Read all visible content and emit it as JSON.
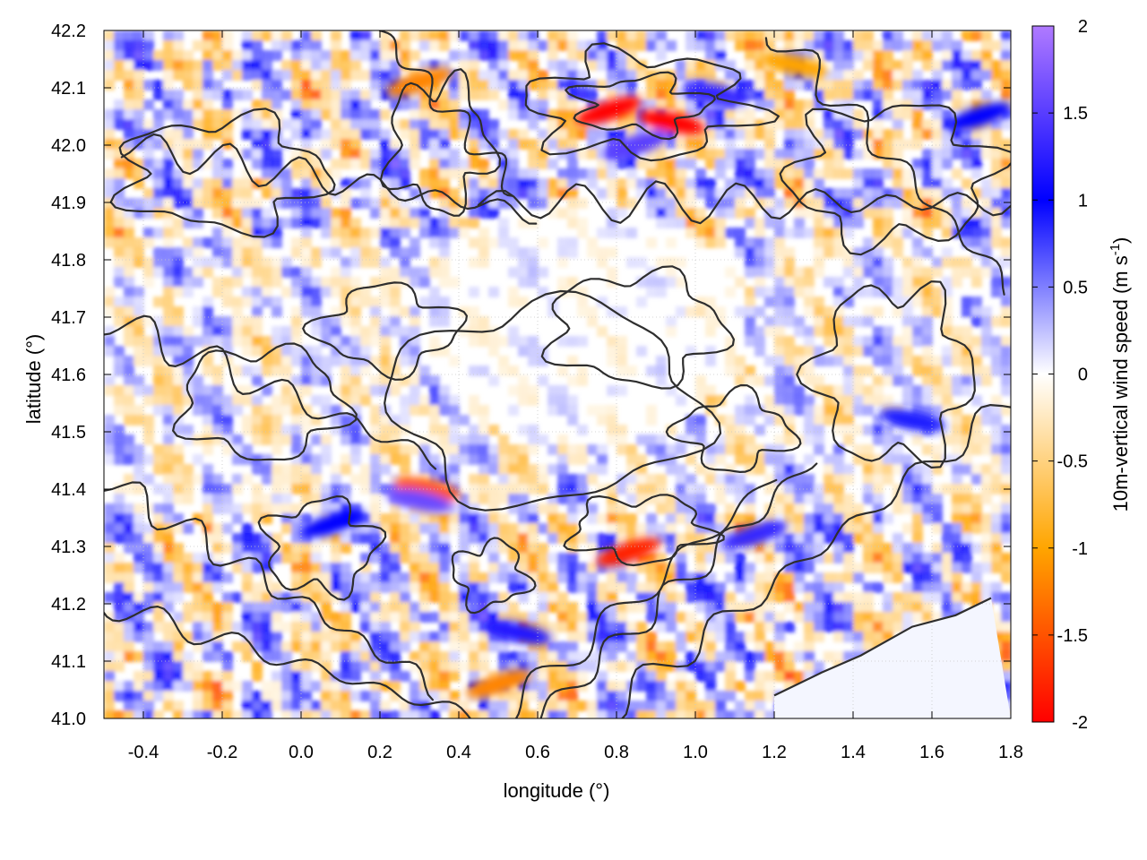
{
  "chart_data": {
    "type": "heatmap",
    "title": "",
    "xlabel": "longitude (°)",
    "ylabel": "latitude (°)",
    "colorbar_label": "10m-vertical wind speed (m s-1)",
    "colorbar_label_parts": {
      "main": "10m-vertical wind speed (m s",
      "sup": "-1",
      "close": ")"
    },
    "xlim": [
      -0.5,
      1.8
    ],
    "ylim": [
      41.0,
      42.2
    ],
    "zlim": [
      -2,
      2
    ],
    "x_ticks": [
      -0.4,
      -0.2,
      0.0,
      0.2,
      0.4,
      0.6,
      0.8,
      1.0,
      1.2,
      1.4,
      1.6,
      1.8
    ],
    "x_tick_labels": [
      "-0.4",
      "-0.2",
      "0.0",
      "0.2",
      "0.4",
      "0.6",
      "0.8",
      "1.0",
      "1.2",
      "1.4",
      "1.6",
      "1.8"
    ],
    "y_ticks": [
      41.0,
      41.1,
      41.2,
      41.3,
      41.4,
      41.5,
      41.6,
      41.7,
      41.8,
      41.9,
      42.0,
      42.1,
      42.2
    ],
    "y_tick_labels": [
      "41.0",
      "41.1",
      "41.2",
      "41.3",
      "41.4",
      "41.5",
      "41.6",
      "41.7",
      "41.8",
      "41.9",
      "42.0",
      "42.1",
      "42.2"
    ],
    "colorbar_ticks": [
      -2,
      -1.5,
      -1,
      -0.5,
      0,
      0.5,
      1,
      1.5,
      2
    ],
    "colorbar_tick_labels": [
      "-2",
      "-1.5",
      "-1",
      "-0.5",
      "0",
      "0.5",
      "1",
      "1.5",
      "2"
    ],
    "colormap": [
      {
        "value": -2,
        "color": "#ff0000"
      },
      {
        "value": -1,
        "color": "#ffa500"
      },
      {
        "value": 0,
        "color": "#ffffff"
      },
      {
        "value": 1,
        "color": "#0000ff"
      },
      {
        "value": 2,
        "color": "#b07aff"
      }
    ],
    "grid": true,
    "contour_color": "#2e2e2e",
    "coastline_lon_lat": [
      [
        1.2,
        41.04
      ],
      [
        1.32,
        41.08
      ],
      [
        1.42,
        41.11
      ],
      [
        1.55,
        41.16
      ],
      [
        1.66,
        41.18
      ],
      [
        1.75,
        41.21
      ]
    ],
    "hotspots": [
      {
        "lon": 0.78,
        "lat": 42.06,
        "value": -2.0
      },
      {
        "lon": 0.94,
        "lat": 42.04,
        "value": -2.0
      },
      {
        "lon": 0.83,
        "lat": 41.29,
        "value": -1.8
      },
      {
        "lon": 0.32,
        "lat": 41.4,
        "value": -1.5
      },
      {
        "lon": 0.3,
        "lat": 42.11,
        "value": -1.2
      },
      {
        "lon": 1.25,
        "lat": 42.14,
        "value": -1.0
      },
      {
        "lon": 0.5,
        "lat": 41.06,
        "value": -1.2
      },
      {
        "lon": 0.3,
        "lat": 41.38,
        "value": 1.6
      },
      {
        "lon": 0.85,
        "lat": 42.0,
        "value": 1.5
      },
      {
        "lon": 1.05,
        "lat": 42.09,
        "value": 1.3
      },
      {
        "lon": 1.15,
        "lat": 41.32,
        "value": 1.3
      },
      {
        "lon": 0.55,
        "lat": 41.15,
        "value": 1.2
      },
      {
        "lon": 0.08,
        "lat": 41.34,
        "value": 1.0
      },
      {
        "lon": 1.55,
        "lat": 41.52,
        "value": 0.9
      },
      {
        "lon": 1.72,
        "lat": 42.05,
        "value": 1.0
      }
    ]
  }
}
